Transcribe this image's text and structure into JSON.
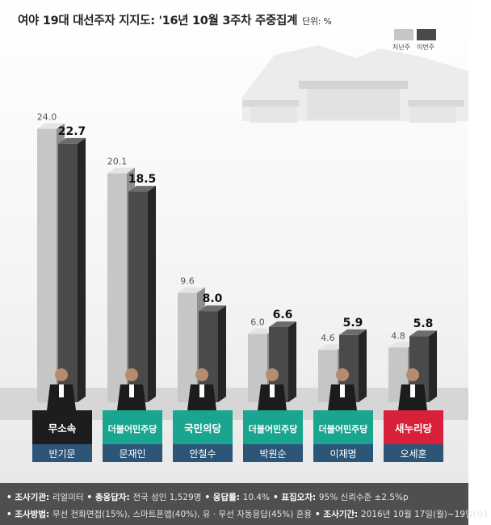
{
  "title": "여야 19대 대선주자 지지도: '16년 10월 3주차 주중집계",
  "unit": "단위: %",
  "legend": {
    "prev": "지난주",
    "curr": "이번주"
  },
  "colors": {
    "prev_front": "#c6c6c6",
    "prev_side": "#8e8e8e",
    "prev_top": "#e4e4e4",
    "curr_front": "#4a4a4a",
    "curr_side": "#262626",
    "curr_top": "#6c6c6c"
  },
  "chart_data": {
    "type": "bar",
    "categories": [
      "반기문",
      "문재인",
      "안철수",
      "박원순",
      "이재명",
      "오세훈"
    ],
    "series": [
      {
        "name": "지난주",
        "values": [
          24.0,
          20.1,
          9.6,
          6.0,
          4.6,
          4.8
        ]
      },
      {
        "name": "이번주",
        "values": [
          22.7,
          18.5,
          8.0,
          6.6,
          5.9,
          5.8
        ]
      }
    ],
    "parties": [
      "무소속",
      "더불어민주당",
      "국민의당",
      "더불어민주당",
      "더불어민주당",
      "새누리당"
    ],
    "party_colors": [
      "#1d1d1d",
      "#19a58f",
      "#19a58f",
      "#19a58f",
      "#19a58f",
      "#d8203a"
    ],
    "name_plate_color": "#2d5578",
    "ylim": [
      0,
      26
    ],
    "legend_position": "top-right"
  },
  "footer": {
    "row1": [
      {
        "key": "조사기관",
        "value": "리얼미터"
      },
      {
        "key": "총응답자",
        "value": "전국 성인 1,529명"
      },
      {
        "key": "응답률",
        "value": "10.4%"
      },
      {
        "key": "표집오차",
        "value": "95% 신뢰수준 ±2.5%p"
      }
    ],
    "row2": [
      {
        "key": "조사방법",
        "value": "무선 전화면접(15%), 스마트폰앱(40%), 유 · 무선 자동응답(45%) 혼용"
      },
      {
        "key": "조사기간",
        "value": "2016년 10월 17일(월)~19일(수)"
      }
    ]
  }
}
